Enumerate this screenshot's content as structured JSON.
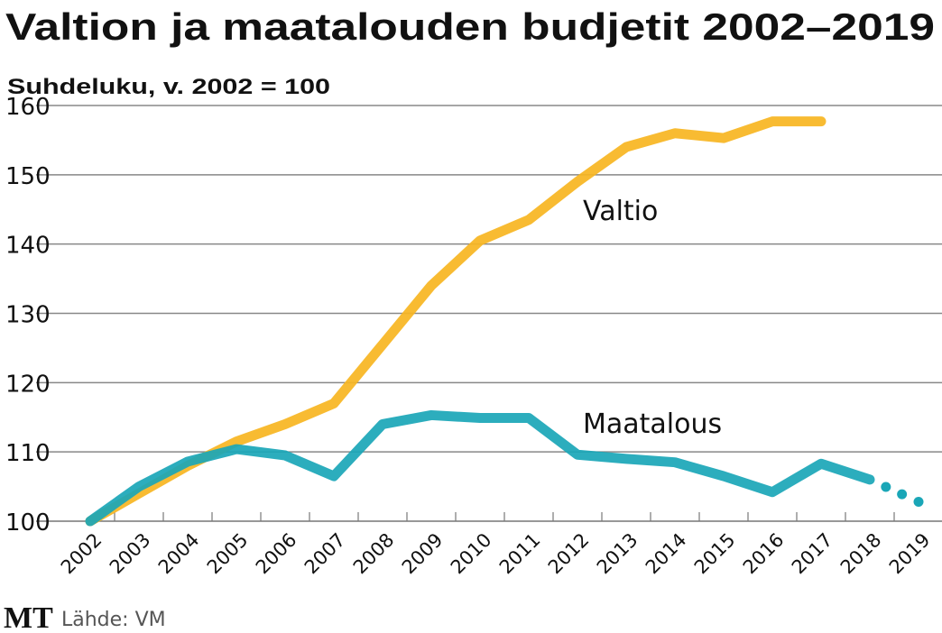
{
  "chart_data": {
    "type": "line",
    "title": "Valtion ja maatalouden budjetit 2002–2019",
    "subtitle": "Suhdeluku, v. 2002 = 100",
    "xlabel": "",
    "ylabel": "",
    "ylim": [
      100,
      160
    ],
    "yticks": [
      "100",
      "110",
      "120",
      "130",
      "140",
      "150",
      "160"
    ],
    "grid": true,
    "categories": [
      "2002",
      "2003",
      "2004",
      "2005",
      "2006",
      "2007",
      "2008",
      "2009",
      "2010",
      "2011",
      "2012",
      "2013",
      "2014",
      "2015",
      "2016",
      "2017",
      "2018",
      "2019"
    ],
    "series": [
      {
        "name": "Valtio",
        "color": "#f7b521",
        "values": [
          100,
          104,
          108,
          111.5,
          114,
          117,
          125.5,
          134,
          140.5,
          143.5,
          149,
          154,
          156,
          155.3,
          157.7,
          157.7,
          null,
          null
        ]
      },
      {
        "name": "Maatalous",
        "color": "#1aa6b7",
        "values": [
          100,
          105,
          108.6,
          110.4,
          109.5,
          106.5,
          114,
          115.3,
          114.9,
          114.9,
          109.6,
          109,
          108.5,
          106.5,
          104.2,
          108.3,
          106,
          102.8
        ],
        "dotted_from": "2018"
      }
    ]
  },
  "source": "Lähde: VM",
  "logo": "MT"
}
